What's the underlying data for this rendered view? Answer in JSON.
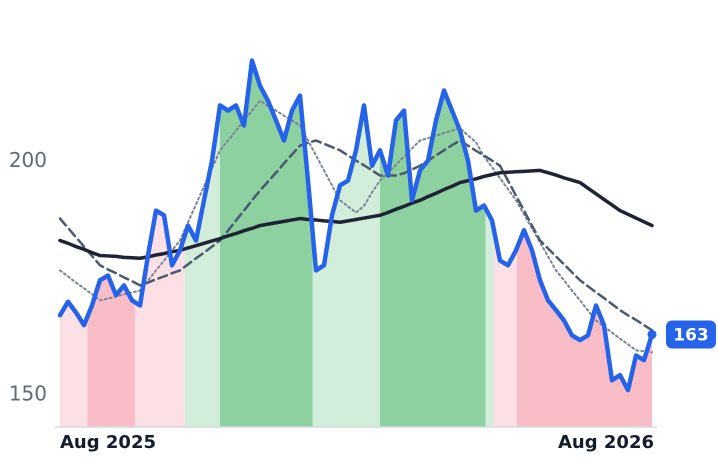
{
  "chart_data": {
    "type": "line",
    "x": [
      0,
      1,
      2,
      3,
      4,
      5,
      6,
      7,
      8,
      9,
      10,
      11,
      12,
      13,
      14,
      15,
      16,
      17,
      18,
      19,
      20,
      21,
      22,
      23,
      24,
      25,
      26,
      27,
      28,
      29,
      30,
      31,
      32,
      33,
      34,
      35,
      36,
      37,
      38,
      39,
      40,
      41,
      42,
      43,
      44,
      45,
      46,
      47,
      48,
      49,
      50,
      51,
      52,
      53,
      54,
      55,
      56,
      57,
      58,
      59,
      60,
      61,
      62,
      63,
      64,
      65,
      66,
      67,
      68,
      69,
      70,
      71,
      72,
      73,
      74
    ],
    "xlim": [
      0,
      74
    ],
    "xticks": [
      {
        "value": 0,
        "label": "Aug 2025"
      },
      {
        "value": 74,
        "label": "Aug 2026"
      }
    ],
    "ylim": [
      143.2,
      226
    ],
    "yticks": [
      150,
      200
    ],
    "regions": [
      {
        "start": 0,
        "end": 3.4,
        "color": "#fde0e5"
      },
      {
        "start": 3.4,
        "end": 9.4,
        "color": "#f9bdc8"
      },
      {
        "start": 9.4,
        "end": 15.6,
        "color": "#fde0e5"
      },
      {
        "start": 15.6,
        "end": 20,
        "color": "#d3eddb"
      },
      {
        "start": 20,
        "end": 31.6,
        "color": "#8ed1a1"
      },
      {
        "start": 31.6,
        "end": 40,
        "color": "#d3eddb"
      },
      {
        "start": 40,
        "end": 53.2,
        "color": "#8ed1a1"
      },
      {
        "start": 53.2,
        "end": 54.2,
        "color": "#d3eddb"
      },
      {
        "start": 54.2,
        "end": 57.1,
        "color": "#fde0e5"
      },
      {
        "start": 57.1,
        "end": 74,
        "color": "#f9bdc8"
      }
    ],
    "series": [
      {
        "color": "#2563eb",
        "style": "solid",
        "width": 4.5,
        "values": [
          167.1,
          170,
          167.7,
          165,
          169.2,
          174.6,
          175.6,
          171.4,
          173.5,
          170.3,
          169.2,
          179.9,
          189.5,
          188.5,
          177.8,
          181,
          186.3,
          183.1,
          191.7,
          200.2,
          212,
          210.9,
          212,
          207.7,
          221.6,
          216.2,
          213,
          208.8,
          204.5,
          210.9,
          214.1,
          195.9,
          176.7,
          177.8,
          188.5,
          194.9,
          195.9,
          202.4,
          212,
          199.1,
          202.4,
          197,
          208.8,
          210.9,
          191.7,
          198.1,
          200.2,
          208.8,
          215.2,
          210.9,
          206.6,
          200.2,
          189.5,
          190.6,
          187.4,
          178.8,
          177.8,
          181,
          185.3,
          181,
          174.6,
          170.3,
          168.2,
          166,
          162.8,
          161.8,
          162.8,
          169.2,
          165,
          153.2,
          154.3,
          151.1,
          158.5,
          157.5,
          163
        ]
      },
      {
        "color": "#1e2335",
        "style": "solid",
        "width": 3.5,
        "values": [
          183.1,
          182.5,
          181.8,
          181.2,
          180.5,
          179.9,
          179.8,
          179.7,
          179.5,
          179.4,
          179.3,
          179.6,
          180,
          180.3,
          180.7,
          181,
          181.5,
          182,
          182.5,
          183,
          183.5,
          184.1,
          184.6,
          185.2,
          185.7,
          186.3,
          186.6,
          186.9,
          187.2,
          187.5,
          187.8,
          187.6,
          187.5,
          187.3,
          187.2,
          187,
          187.3,
          187.6,
          187.9,
          188.2,
          188.5,
          189.1,
          189.8,
          190.4,
          191.1,
          191.7,
          192.5,
          193.2,
          194,
          194.7,
          195.5,
          195.9,
          196.3,
          196.8,
          197.2,
          197.6,
          197.7,
          197.8,
          197.9,
          198,
          198.1,
          197.6,
          197.1,
          196.5,
          196,
          195.5,
          194.3,
          193.1,
          191.9,
          190.7,
          189.5,
          188.7,
          187.9,
          187.1,
          186.3
        ]
      },
      {
        "color": "#4b5a70",
        "style": "dashed",
        "width": 2.5,
        "values": [
          187.8,
          185.8,
          183.8,
          181.8,
          179.8,
          177.8,
          176.9,
          176.1,
          175.2,
          174.4,
          173.5,
          174.1,
          174.8,
          175.4,
          176.1,
          176.7,
          178,
          179.3,
          180.5,
          181.8,
          183.1,
          185.2,
          187.4,
          189.5,
          191.7,
          193.8,
          195.7,
          197.6,
          199.6,
          201.5,
          203.4,
          204,
          204.5,
          203.8,
          203.1,
          202.4,
          201.3,
          200.2,
          199.2,
          198.1,
          197,
          197,
          197,
          197.5,
          198.3,
          199.1,
          200.2,
          201.3,
          202.4,
          203.5,
          204.5,
          203.4,
          202.3,
          201.3,
          200.2,
          199.1,
          195.9,
          192.7,
          189.5,
          186.3,
          183.1,
          181.4,
          179.7,
          178,
          176.3,
          174.6,
          173.3,
          172,
          170.8,
          169.5,
          168.2,
          167.1,
          166.1,
          165,
          163.9
        ]
      },
      {
        "color": "#7a8597",
        "style": "dotted",
        "width": 2,
        "values": [
          176.7,
          175.4,
          174.1,
          172.9,
          171.6,
          170.3,
          170.7,
          171.1,
          171.6,
          172,
          172.4,
          174.5,
          176.7,
          178.8,
          181,
          183.1,
          187,
          190.8,
          194.7,
          198.5,
          202.4,
          204.5,
          206.6,
          208.8,
          210.9,
          213,
          211.9,
          210.9,
          209.8,
          208.8,
          207.7,
          204.5,
          201.3,
          198.1,
          194.9,
          191.7,
          190.4,
          189.1,
          190.5,
          193.4,
          195.9,
          197.6,
          199.3,
          201.1,
          202.8,
          204.5,
          205,
          205.5,
          206.1,
          206.6,
          207.1,
          205.6,
          204.1,
          201.1,
          198.8,
          196.4,
          194.1,
          191.7,
          188.7,
          185.7,
          182.7,
          179.7,
          176.7,
          174.6,
          172.4,
          170.3,
          168.1,
          166,
          164.7,
          163.4,
          162.1,
          160.9,
          159.6,
          159.4,
          159.2
        ]
      }
    ]
  }
}
